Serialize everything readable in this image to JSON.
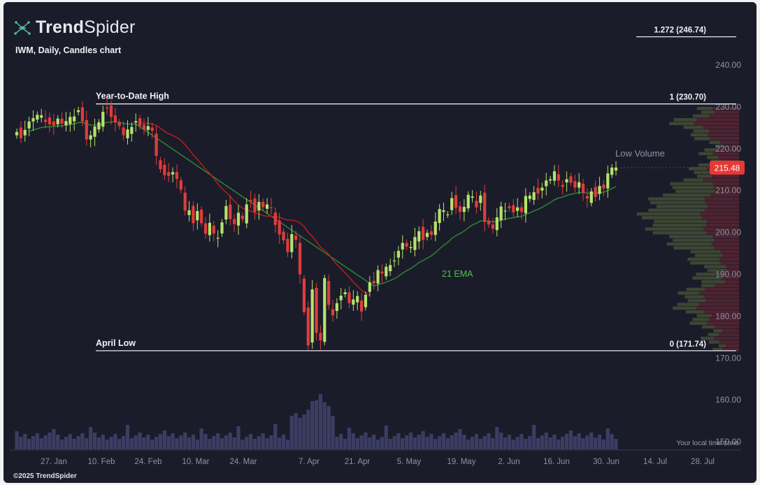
{
  "header": {
    "brand_bold": "Trend",
    "brand_light": "Spider",
    "subtitle": "IWM, Daily, Candles chart"
  },
  "footer": {
    "timezone_note": "Your local time zone",
    "copyright": "©2025 TrendSpider"
  },
  "colors": {
    "background": "#1b1c2a",
    "up": "#b5e36b",
    "down": "#e03c3c",
    "ema": "#2e8b2e",
    "sma_red": "#c81e1e",
    "volume": "#3b3d63",
    "axis_text": "#8f92a3",
    "price_tag": "#e53935"
  },
  "chart_data": {
    "type": "candlestick",
    "title": "IWM, Daily, Candles chart",
    "x_tick_labels": [
      "27. Jan",
      "10. Feb",
      "24. Feb",
      "10. Mar",
      "24. Mar",
      "7. Apr",
      "21. Apr",
      "5. May",
      "19. May",
      "2. Jun",
      "16. Jun",
      "30. Jun",
      "14. Jul",
      "28. Jul"
    ],
    "y_tick_labels": [
      "240.00",
      "230.00",
      "220.00",
      "210.00",
      "200.00",
      "190.00",
      "180.00",
      "170.00",
      "160.00",
      "150.00"
    ],
    "ylim": [
      148,
      252
    ],
    "current_price": "215.48",
    "fib_levels": [
      {
        "ratio_label": "1.272 (246.74)",
        "value": 246.74
      },
      {
        "ratio_label": "1 (230.70)",
        "value": 230.7,
        "name": "Year-to-Date High"
      },
      {
        "ratio_label": "0 (171.74)",
        "value": 171.74,
        "name": "April Low"
      }
    ],
    "annotations": {
      "ema_label": "21 EMA",
      "volume_profile_label": "Low Volume"
    },
    "candles_close": [
      224.0,
      222.5,
      224.5,
      226.5,
      227.3,
      228.1,
      228.0,
      226.4,
      225.8,
      225.5,
      227.2,
      226.0,
      226.6,
      227.6,
      227.7,
      229.2,
      226.5,
      222.2,
      223.2,
      225.3,
      226.3,
      228.8,
      229.6,
      227.6,
      226.3,
      225.4,
      223.2,
      224.6,
      225.2,
      226.6,
      225.4,
      224.5,
      225.4,
      224.3,
      218.3,
      215.1,
      213.7,
      213.5,
      214.4,
      212.8,
      210.2,
      205.2,
      205.3,
      202.2,
      205.1,
      202.2,
      199.7,
      202.3,
      199.7,
      198.7,
      202.4,
      206.3,
      203.2,
      202.0,
      204.7,
      203.2,
      206.7,
      207.4,
      204.9,
      207.3,
      206.0,
      206.7,
      205.8,
      201.8,
      199.5,
      198.1,
      195.3,
      199.6,
      198.2,
      190.0,
      181.0,
      173.0,
      186.4,
      176.0,
      174.2,
      189.1,
      182.7,
      180.2,
      183.1,
      184.9,
      185.7,
      183.1,
      184.0,
      184.8,
      181.1,
      185.1,
      188.1,
      187.8,
      191.0,
      190.2,
      191.8,
      192.2,
      193.3,
      195.6,
      197.5,
      196.6,
      196.5,
      198.9,
      200.3,
      198.2,
      199.9,
      199.4,
      202.6,
      205.6,
      205.3,
      204.3,
      208.2,
      205.9,
      204.9,
      206.1,
      209.0,
      208.6,
      206.0,
      208.8,
      202.5,
      201.9,
      200.9,
      203.6,
      206.2,
      205.2,
      205.8,
      204.8,
      206.0,
      204.9,
      208.7,
      208.8,
      209.6,
      209.3,
      210.7,
      212.4,
      212.7,
      214.6,
      212.4,
      210.9,
      212.7,
      211.9,
      210.7,
      212.0,
      209.4,
      208.1,
      209.8,
      208.5,
      211.1,
      210.5,
      214.1,
      215.5,
      215.5
    ]
  }
}
